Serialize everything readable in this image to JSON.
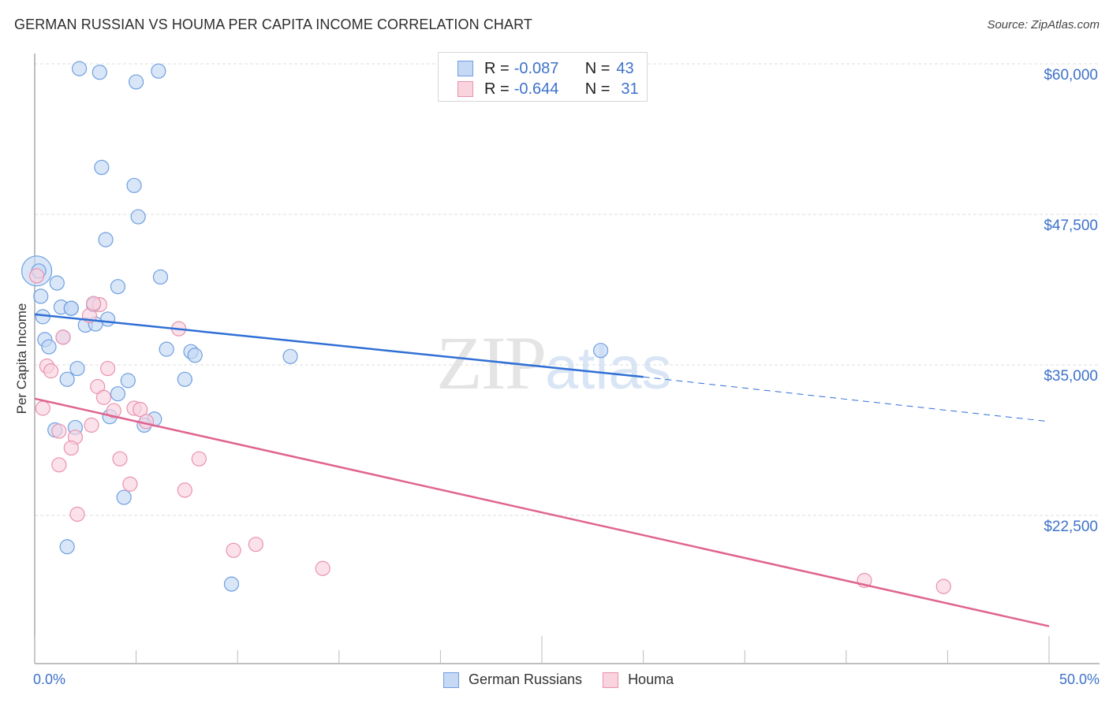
{
  "header": {
    "title": "GERMAN RUSSIAN VS HOUMA PER CAPITA INCOME CORRELATION CHART",
    "source": "Source: ZipAtlas.com"
  },
  "watermark": {
    "zip": "ZIP",
    "atlas": "atlas"
  },
  "colors": {
    "blue_fill": "#c5d9f4",
    "blue_stroke": "#6f9fe0",
    "blue_line": "#2f6fd6",
    "pink_fill": "#f9d3de",
    "pink_stroke": "#ea92ad",
    "pink_line": "#e0648e",
    "axis_text": "#3d72c9",
    "grid": "#dcdcdc"
  },
  "legend_top": {
    "rows": [
      {
        "series": "German Russians",
        "r_label": "R =",
        "r_value": "-0.087",
        "n_label": "N =",
        "n_value": "43"
      },
      {
        "series": "Houma",
        "r_label": "R =",
        "r_value": "-0.644",
        "n_label": "N =",
        "n_value": "31"
      }
    ]
  },
  "legend_bottom": {
    "items": [
      {
        "label": "German Russians"
      },
      {
        "label": "Houma"
      }
    ]
  },
  "axes": {
    "y_label": "Per Capita Income",
    "y_ticks": [
      "$60,000",
      "$47,500",
      "$35,000",
      "$22,500"
    ],
    "x_ticks": [
      "0.0%",
      "50.0%"
    ]
  },
  "chart_data": {
    "type": "scatter",
    "title": "GERMAN RUSSIAN VS HOUMA PER CAPITA INCOME CORRELATION CHART",
    "xlabel": "",
    "ylabel": "Per Capita Income",
    "xlim": [
      0,
      50
    ],
    "ylim": [
      12300,
      60500
    ],
    "x_unit": "%",
    "grid": true,
    "legend_position": "bottom",
    "y_tick_values": [
      60000,
      47500,
      35000,
      22500
    ],
    "x_tick_values": [
      0,
      50
    ],
    "series": [
      {
        "name": "German Russians",
        "color": "#6f9fe0",
        "R": -0.087,
        "N": 43,
        "trend": {
          "x": [
            0,
            30,
            50
          ],
          "y": [
            39200,
            34000,
            30300
          ],
          "solid_until_x": 30
        },
        "points": [
          {
            "x": 2.2,
            "y": 59600
          },
          {
            "x": 3.2,
            "y": 59300
          },
          {
            "x": 5.0,
            "y": 58500
          },
          {
            "x": 6.1,
            "y": 59400
          },
          {
            "x": 3.3,
            "y": 51400
          },
          {
            "x": 4.9,
            "y": 49900
          },
          {
            "x": 5.1,
            "y": 47300
          },
          {
            "x": 3.5,
            "y": 45400
          },
          {
            "x": 0.1,
            "y": 42800
          },
          {
            "x": 1.1,
            "y": 41800
          },
          {
            "x": 6.2,
            "y": 42300
          },
          {
            "x": 4.1,
            "y": 41500
          },
          {
            "x": 0.3,
            "y": 40700
          },
          {
            "x": 1.3,
            "y": 39800
          },
          {
            "x": 1.8,
            "y": 39700
          },
          {
            "x": 2.9,
            "y": 40000
          },
          {
            "x": 0.4,
            "y": 39000
          },
          {
            "x": 3.6,
            "y": 38800
          },
          {
            "x": 2.5,
            "y": 38300
          },
          {
            "x": 3.0,
            "y": 38400
          },
          {
            "x": 0.5,
            "y": 37100
          },
          {
            "x": 0.7,
            "y": 36500
          },
          {
            "x": 1.4,
            "y": 37300
          },
          {
            "x": 6.5,
            "y": 36300
          },
          {
            "x": 7.7,
            "y": 36100
          },
          {
            "x": 12.6,
            "y": 35700
          },
          {
            "x": 27.9,
            "y": 36200
          },
          {
            "x": 7.9,
            "y": 35800
          },
          {
            "x": 2.1,
            "y": 34700
          },
          {
            "x": 1.6,
            "y": 33800
          },
          {
            "x": 4.6,
            "y": 33700
          },
          {
            "x": 7.4,
            "y": 33800
          },
          {
            "x": 4.1,
            "y": 32600
          },
          {
            "x": 3.7,
            "y": 30700
          },
          {
            "x": 5.9,
            "y": 30500
          },
          {
            "x": 5.4,
            "y": 30000
          },
          {
            "x": 1.0,
            "y": 29600
          },
          {
            "x": 2.0,
            "y": 29800
          },
          {
            "x": 4.4,
            "y": 24000
          },
          {
            "x": 1.6,
            "y": 19900
          },
          {
            "x": 9.7,
            "y": 16800
          },
          {
            "x": 1.8,
            "y": 39700
          },
          {
            "x": 0.2,
            "y": 42800
          }
        ]
      },
      {
        "name": "Houma",
        "color": "#ea92ad",
        "R": -0.644,
        "N": 31,
        "trend": {
          "x": [
            0,
            50
          ],
          "y": [
            32200,
            13300
          ]
        },
        "points": [
          {
            "x": 0.1,
            "y": 42400
          },
          {
            "x": 3.2,
            "y": 40000
          },
          {
            "x": 2.7,
            "y": 39100
          },
          {
            "x": 7.1,
            "y": 38000
          },
          {
            "x": 1.4,
            "y": 37300
          },
          {
            "x": 0.6,
            "y": 34900
          },
          {
            "x": 0.8,
            "y": 34500
          },
          {
            "x": 3.6,
            "y": 34700
          },
          {
            "x": 3.1,
            "y": 33200
          },
          {
            "x": 3.4,
            "y": 32300
          },
          {
            "x": 0.4,
            "y": 31400
          },
          {
            "x": 4.9,
            "y": 31400
          },
          {
            "x": 5.2,
            "y": 31300
          },
          {
            "x": 3.9,
            "y": 31200
          },
          {
            "x": 2.8,
            "y": 30000
          },
          {
            "x": 1.2,
            "y": 29500
          },
          {
            "x": 2.0,
            "y": 29000
          },
          {
            "x": 1.8,
            "y": 28100
          },
          {
            "x": 1.2,
            "y": 26700
          },
          {
            "x": 4.2,
            "y": 27200
          },
          {
            "x": 8.1,
            "y": 27200
          },
          {
            "x": 4.7,
            "y": 25100
          },
          {
            "x": 7.4,
            "y": 24600
          },
          {
            "x": 2.1,
            "y": 22600
          },
          {
            "x": 9.8,
            "y": 19600
          },
          {
            "x": 10.9,
            "y": 20100
          },
          {
            "x": 14.2,
            "y": 18100
          },
          {
            "x": 40.9,
            "y": 17100
          },
          {
            "x": 44.8,
            "y": 16600
          },
          {
            "x": 5.5,
            "y": 30300
          },
          {
            "x": 2.9,
            "y": 40100
          }
        ]
      }
    ]
  }
}
